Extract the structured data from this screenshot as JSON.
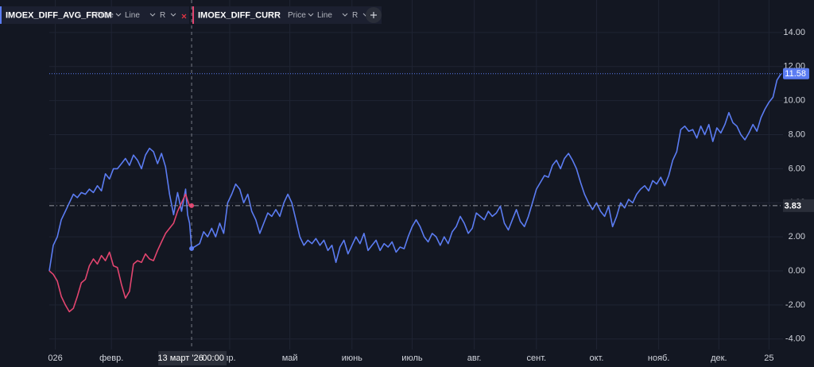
{
  "chart_data": {
    "type": "line",
    "legend_controls": [
      "Price",
      "Line",
      "R"
    ],
    "crosshair": {
      "x": 71,
      "label": "13 март '26",
      "time": "00:00"
    },
    "xlim": [
      0,
      366
    ],
    "xticks": [
      {
        "value": 3,
        "label": "026"
      },
      {
        "value": 31,
        "label": "февр."
      },
      {
        "value": 90,
        "label": "пр."
      },
      {
        "value": 120,
        "label": "май"
      },
      {
        "value": 151,
        "label": "июнь"
      },
      {
        "value": 181,
        "label": "июль"
      },
      {
        "value": 212,
        "label": "авг."
      },
      {
        "value": 243,
        "label": "сент."
      },
      {
        "value": 273,
        "label": "окт."
      },
      {
        "value": 304,
        "label": "нояб."
      },
      {
        "value": 334,
        "label": "дек."
      },
      {
        "value": 359,
        "label": "25"
      }
    ],
    "ylim": [
      -4.62,
      15.91
    ],
    "yticks": [
      {
        "value": 14,
        "label": "14.00"
      },
      {
        "value": 12,
        "label": "12.00"
      },
      {
        "value": 10,
        "label": "10.00"
      },
      {
        "value": 8,
        "label": "8.00"
      },
      {
        "value": 6,
        "label": "6.00"
      },
      {
        "value": 4,
        "label": "4.00"
      },
      {
        "value": 2,
        "label": "2.00"
      },
      {
        "value": 0,
        "label": "0.00"
      },
      {
        "value": -2,
        "label": "-2.00"
      },
      {
        "value": -4,
        "label": "-4.00"
      }
    ],
    "grid": true,
    "series": [
      {
        "name": "IMOEX_DIFF_AVG_FROM",
        "color": "#5b7cf2",
        "x": [
          0,
          2,
          4,
          6,
          8,
          10,
          12,
          14,
          16,
          18,
          20,
          22,
          24,
          26,
          28,
          30,
          32,
          34,
          36,
          38,
          40,
          42,
          44,
          46,
          48,
          50,
          52,
          54,
          56,
          58,
          60,
          62,
          64,
          66,
          68,
          69,
          70,
          71,
          75,
          77,
          79,
          81,
          83,
          85,
          87,
          89,
          91,
          93,
          95,
          97,
          99,
          101,
          103,
          105,
          107,
          109,
          111,
          113,
          115,
          117,
          119,
          121,
          123,
          125,
          127,
          129,
          131,
          133,
          135,
          137,
          139,
          141,
          143,
          145,
          147,
          149,
          151,
          153,
          155,
          157,
          159,
          161,
          163,
          165,
          167,
          169,
          171,
          173,
          175,
          177,
          179,
          181,
          183,
          185,
          187,
          189,
          191,
          193,
          195,
          197,
          199,
          201,
          203,
          205,
          207,
          209,
          211,
          213,
          215,
          217,
          219,
          221,
          223,
          225,
          227,
          229,
          231,
          233,
          235,
          237,
          239,
          241,
          243,
          245,
          247,
          249,
          251,
          253,
          255,
          257,
          259,
          261,
          263,
          265,
          267,
          269,
          271,
          273,
          275,
          277,
          279,
          281,
          283,
          285,
          287,
          289,
          291,
          293,
          295,
          297,
          299,
          301,
          303,
          305,
          307,
          309,
          311,
          313,
          315,
          317,
          319,
          321,
          323,
          325,
          327,
          329,
          331,
          333,
          335,
          337,
          339,
          341,
          343,
          345,
          347,
          349,
          351,
          353,
          355,
          357,
          359,
          361,
          363,
          365
        ],
        "values": [
          0,
          1.5,
          2.0,
          3.0,
          3.5,
          4.0,
          4.5,
          4.3,
          4.6,
          4.5,
          4.8,
          4.6,
          5.0,
          4.7,
          5.7,
          5.4,
          6.0,
          6.0,
          6.3,
          6.6,
          6.2,
          6.8,
          6.5,
          6.0,
          6.8,
          7.2,
          7.0,
          6.3,
          6.9,
          6.1,
          4.5,
          3.3,
          4.6,
          3.5,
          4.8,
          3.3,
          2.8,
          1.31,
          1.6,
          2.3,
          2.0,
          2.5,
          2.0,
          2.8,
          2.2,
          4.0,
          4.5,
          5.1,
          4.8,
          4.0,
          4.5,
          3.5,
          3.0,
          2.2,
          2.8,
          3.4,
          3.2,
          3.6,
          3.2,
          4.0,
          4.5,
          4.0,
          3.0,
          2.0,
          1.5,
          1.8,
          1.6,
          1.9,
          1.5,
          1.8,
          1.2,
          1.5,
          0.5,
          1.4,
          1.8,
          1.0,
          1.5,
          2.0,
          1.6,
          2.2,
          1.2,
          1.5,
          1.8,
          1.2,
          1.6,
          1.4,
          1.7,
          1.1,
          1.4,
          1.3,
          2.0,
          2.6,
          3.0,
          2.6,
          2.0,
          1.7,
          2.2,
          2.0,
          1.5,
          2.0,
          1.6,
          2.3,
          2.6,
          3.2,
          2.8,
          2.2,
          2.5,
          3.4,
          3.2,
          3.0,
          3.5,
          3.2,
          3.4,
          3.8,
          2.8,
          2.4,
          3.0,
          3.6,
          2.9,
          2.6,
          3.2,
          4.0,
          4.8,
          5.2,
          5.6,
          5.5,
          6.2,
          6.5,
          6.0,
          6.6,
          6.9,
          6.5,
          6.0,
          5.2,
          4.5,
          4.0,
          3.6,
          4.0,
          3.5,
          3.2,
          3.8,
          2.6,
          3.2,
          4.0,
          3.7,
          4.2,
          4.0,
          4.5,
          4.8,
          5.0,
          4.7,
          5.3,
          5.1,
          5.5,
          5.0,
          5.6,
          6.5,
          7.0,
          8.3,
          8.5,
          8.2,
          8.3,
          7.8,
          8.5,
          8.0,
          8.6,
          7.6,
          8.4,
          8.1,
          8.6,
          9.3,
          8.7,
          8.5,
          8.0,
          7.7,
          8.1,
          8.6,
          8.2,
          9.0,
          9.5,
          9.9,
          10.2,
          11.2,
          11.58
        ]
      },
      {
        "name": "IMOEX_DIFF_CURR",
        "color": "#e2456f",
        "x": [
          0,
          2,
          4,
          6,
          8,
          10,
          12,
          14,
          16,
          18,
          20,
          22,
          24,
          26,
          28,
          30,
          32,
          34,
          36,
          38,
          40,
          42,
          44,
          46,
          48,
          50,
          52,
          54,
          56,
          58,
          60,
          62,
          64,
          66,
          68,
          70,
          71
        ],
        "values": [
          0,
          -0.2,
          -0.6,
          -1.5,
          -2.0,
          -2.4,
          -2.2,
          -1.5,
          -0.7,
          -0.5,
          0.3,
          0.7,
          0.4,
          0.9,
          0.6,
          1.1,
          0.3,
          0.2,
          -0.8,
          -1.6,
          -1.2,
          0.4,
          0.6,
          0.5,
          1.0,
          0.7,
          0.6,
          1.2,
          1.7,
          2.2,
          2.5,
          2.8,
          3.5,
          4.0,
          4.5,
          3.8,
          3.83
        ]
      }
    ]
  }
}
